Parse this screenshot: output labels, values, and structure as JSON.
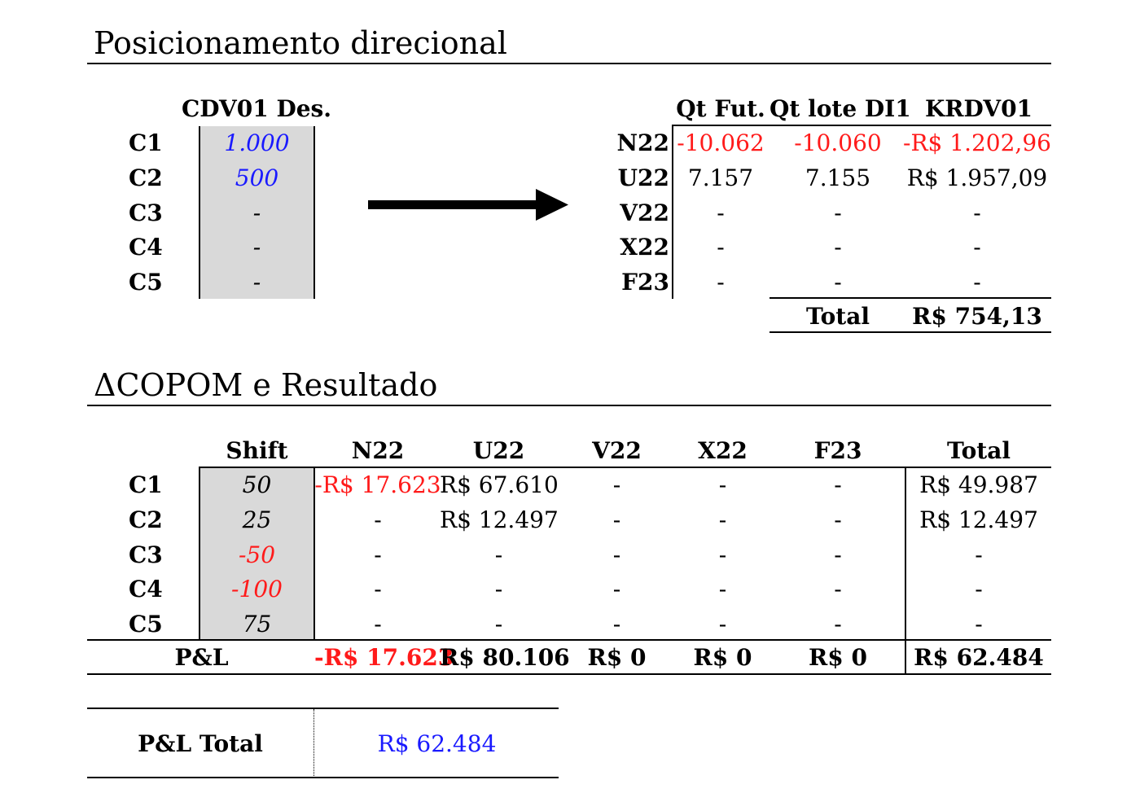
{
  "section1": {
    "title": "Posicionamento direcional",
    "left_header": "CDV01 Des.",
    "rows": [
      {
        "label": "C1",
        "value": "1.000"
      },
      {
        "label": "C2",
        "value": "500"
      },
      {
        "label": "C3",
        "value": "-"
      },
      {
        "label": "C4",
        "value": "-"
      },
      {
        "label": "C5",
        "value": "-"
      }
    ],
    "right_headers": [
      "Qt Fut.",
      "Qt lote DI1",
      "KRDV01"
    ],
    "right_rows": [
      {
        "label": "N22",
        "qt_fut": "-10.062",
        "qt_lote": "-10.060",
        "krdv01": "-R$ 1.202,96"
      },
      {
        "label": "U22",
        "qt_fut": "7.157",
        "qt_lote": "7.155",
        "krdv01": "R$ 1.957,09"
      },
      {
        "label": "V22",
        "qt_fut": "-",
        "qt_lote": "-",
        "krdv01": "-"
      },
      {
        "label": "X22",
        "qt_fut": "-",
        "qt_lote": "-",
        "krdv01": "-"
      },
      {
        "label": "F23",
        "qt_fut": "-",
        "qt_lote": "-",
        "krdv01": "-"
      }
    ],
    "total_label": "Total",
    "total_value": "R$ 754,13"
  },
  "section2": {
    "title_symbol": "Δ",
    "title": "COPOM e Resultado",
    "headers": [
      "Shift",
      "N22",
      "U22",
      "V22",
      "X22",
      "F23",
      "Total"
    ],
    "rows": [
      {
        "label": "C1",
        "shift": "50",
        "n22": "-R$ 17.623",
        "u22": "R$ 67.610",
        "v22": "-",
        "x22": "-",
        "f23": "-",
        "total": "R$ 49.987"
      },
      {
        "label": "C2",
        "shift": "25",
        "n22": "-",
        "u22": "R$ 12.497",
        "v22": "-",
        "x22": "-",
        "f23": "-",
        "total": "R$ 12.497"
      },
      {
        "label": "C3",
        "shift": "-50",
        "n22": "-",
        "u22": "-",
        "v22": "-",
        "x22": "-",
        "f23": "-",
        "total": "-"
      },
      {
        "label": "C4",
        "shift": "-100",
        "n22": "-",
        "u22": "-",
        "v22": "-",
        "x22": "-",
        "f23": "-",
        "total": "-"
      },
      {
        "label": "C5",
        "shift": "75",
        "n22": "-",
        "u22": "-",
        "v22": "-",
        "x22": "-",
        "f23": "-",
        "total": "-"
      }
    ],
    "pl_label": "P&L",
    "pl_values": {
      "n22": "-R$ 17.623",
      "u22": "R$ 80.106",
      "v22": "R$ 0",
      "x22": "R$ 0",
      "f23": "R$ 0",
      "total": "R$ 62.484"
    }
  },
  "summary": {
    "label": "P&L Total",
    "value": "R$ 62.484"
  },
  "colors": {
    "negative": "#ff1a1a",
    "input_blue": "#1a1aff",
    "input_fill": "#d9d9d9"
  }
}
